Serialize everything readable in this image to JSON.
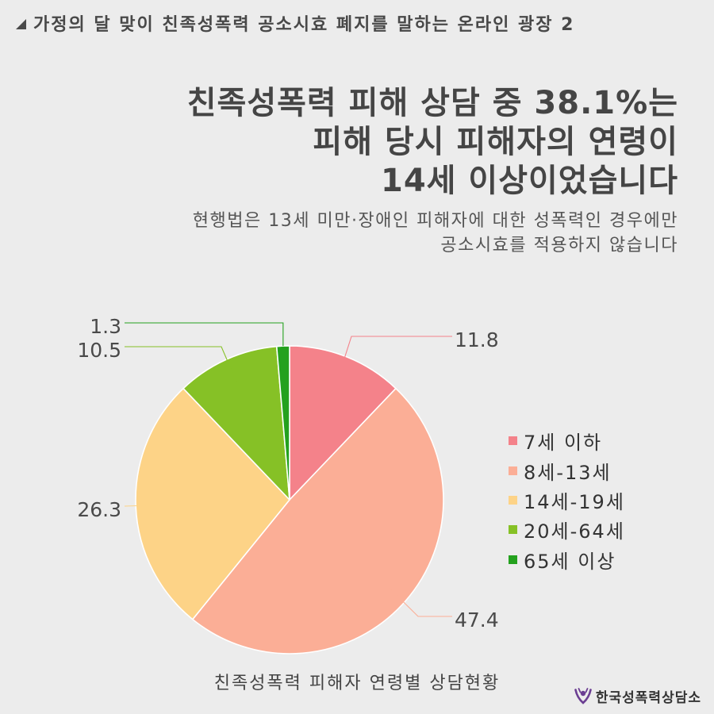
{
  "header": {
    "icon": "corner-triangle-icon",
    "text": "가정의 달 맞이 친족성폭력 공소시효 폐지를 말하는 온라인 광장 2"
  },
  "headline": {
    "lines": [
      "친족성폭력 피해 상담 중 38.1%는",
      "피해 당시 피해자의 연령이",
      "14세 이상이었습니다"
    ]
  },
  "subheadline": {
    "lines": [
      "현행법은 13세 미만·장애인 피해자에 대한 성폭력인 경우에만",
      "공소시효를 적용하지 않습니다"
    ]
  },
  "chart_data": {
    "type": "pie",
    "title": "친족성폭력 피해자 연령별 상담현황",
    "categories": [
      "7세 이하",
      "8세-13세",
      "14세-19세",
      "20세-64세",
      "65세 이상"
    ],
    "values": [
      11.8,
      47.4,
      26.3,
      10.5,
      1.3
    ],
    "colors": [
      "#F4828A",
      "#FBAE96",
      "#FDD387",
      "#86C126",
      "#24A11E"
    ],
    "legend_position": "right"
  },
  "logo": {
    "icon": "counseling-center-logo-icon",
    "color": "#6B3E92",
    "text": "한국성폭력상담소"
  }
}
